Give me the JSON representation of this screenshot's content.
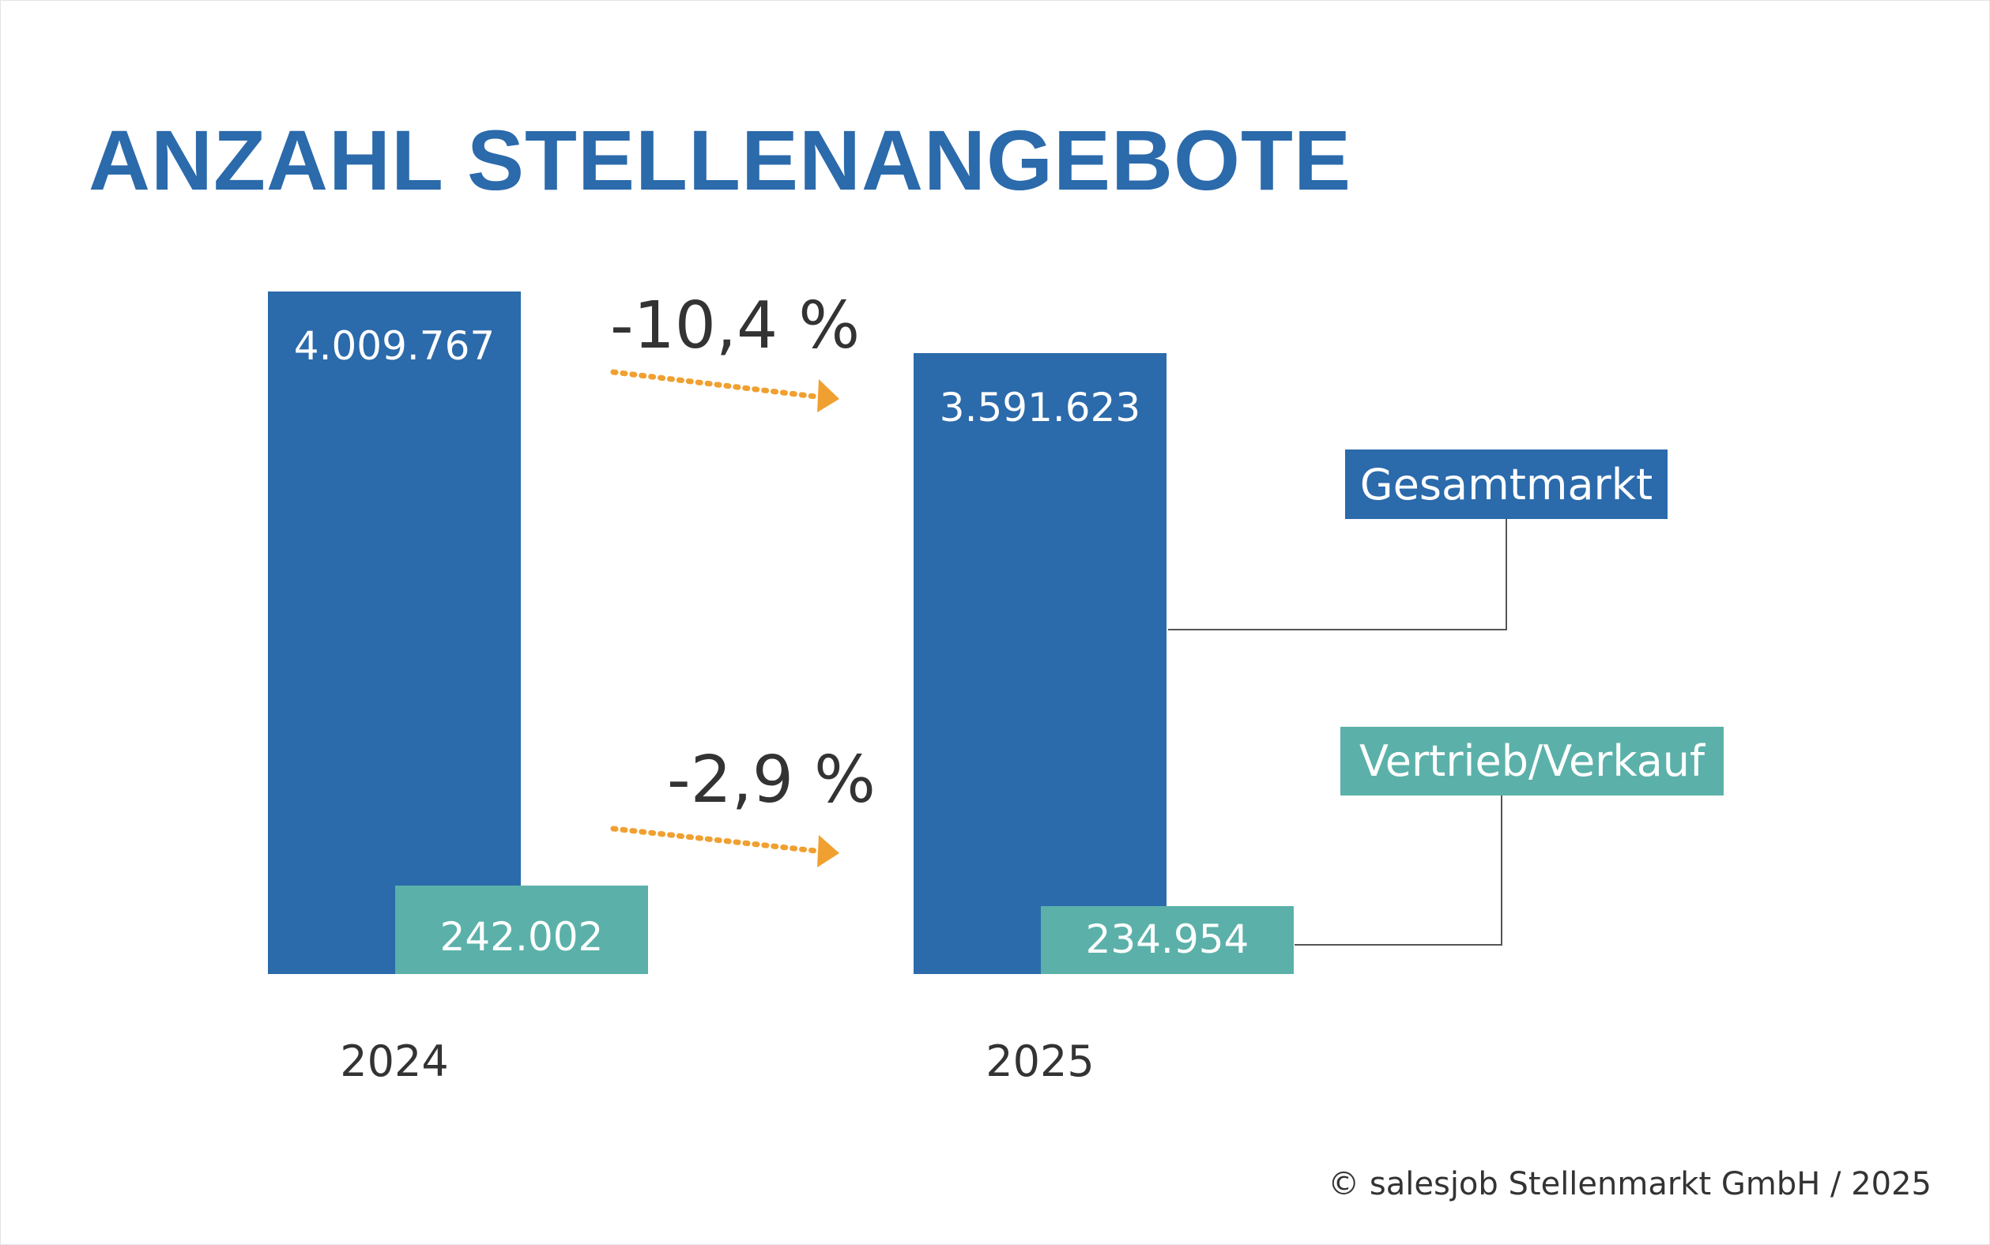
{
  "colors": {
    "gesamtmarkt": "#2b6aab",
    "vertrieb": "#5bb1a9",
    "arrow": "#f0a030",
    "text": "#333333"
  },
  "chart_data": {
    "type": "bar",
    "title": "ANZAHL STELLENANGEBOTE",
    "categories": [
      "2024",
      "2025"
    ],
    "series": [
      {
        "name": "Gesamtmarkt",
        "values": [
          4009767,
          3591623
        ],
        "labels": [
          "4.009.767",
          "3.591.623"
        ]
      },
      {
        "name": "Vertrieb/Verkauf",
        "values": [
          242002,
          234954
        ],
        "labels": [
          "242.002",
          "234.954"
        ]
      }
    ],
    "annotations": [
      {
        "series": "Gesamtmarkt",
        "text": "-10,4 %"
      },
      {
        "series": "Vertrieb/Verkauf",
        "text": "-2,9 %"
      }
    ],
    "grid": false,
    "legend": "right"
  },
  "footer": {
    "copyright": "© salesjob Stellenmarkt GmbH / 2025"
  }
}
